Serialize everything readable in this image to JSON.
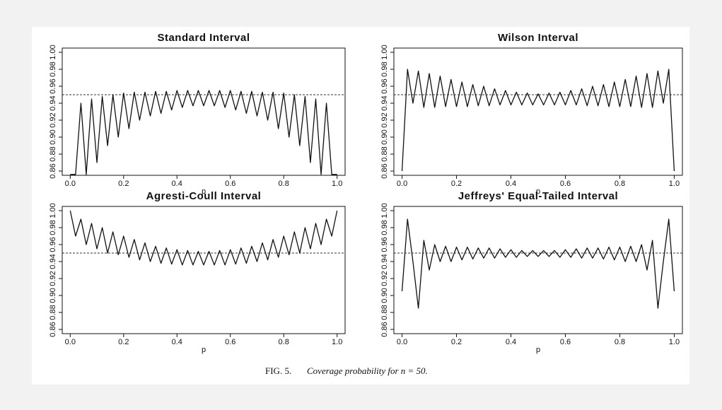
{
  "chart_data": [
    {
      "type": "line",
      "title": "Standard Interval",
      "x_label": "p",
      "x": [
        0,
        0.02,
        0.04,
        0.06,
        0.08,
        0.1,
        0.12,
        0.14,
        0.16,
        0.18,
        0.2,
        0.22,
        0.24,
        0.26,
        0.28,
        0.3,
        0.32,
        0.34,
        0.36,
        0.38,
        0.4,
        0.42,
        0.44,
        0.46,
        0.48,
        0.5,
        0.52,
        0.54,
        0.56,
        0.58,
        0.6,
        0.62,
        0.64,
        0.66,
        0.68,
        0.7,
        0.72,
        0.74,
        0.76,
        0.78,
        0.8,
        0.82,
        0.84,
        0.86,
        0.88,
        0.9,
        0.92,
        0.94,
        0.96,
        0.98,
        1.0
      ],
      "values": [
        0.856,
        0.856,
        0.94,
        0.856,
        0.945,
        0.87,
        0.948,
        0.89,
        0.95,
        0.9,
        0.952,
        0.91,
        0.953,
        0.92,
        0.953,
        0.925,
        0.954,
        0.928,
        0.954,
        0.932,
        0.955,
        0.935,
        0.955,
        0.937,
        0.955,
        0.937,
        0.955,
        0.937,
        0.955,
        0.935,
        0.955,
        0.932,
        0.954,
        0.928,
        0.954,
        0.925,
        0.953,
        0.92,
        0.953,
        0.91,
        0.952,
        0.9,
        0.95,
        0.89,
        0.948,
        0.87,
        0.945,
        0.856,
        0.94,
        0.856,
        0.856
      ],
      "color": "#111111",
      "hline": 0.95,
      "xlim": [
        -0.03,
        1.03
      ],
      "xticks": [
        {
          "value": 0,
          "label": "0.0"
        },
        0.2,
        0.4,
        0.6,
        0.8,
        {
          "value": 1,
          "label": "1.0"
        }
      ],
      "ylim": [
        0.855,
        1.005
      ],
      "yticks": [
        0.86,
        0.88,
        {
          "value": 0.9,
          "label": "0.90"
        },
        0.92,
        0.94,
        0.96,
        0.98,
        {
          "value": 1,
          "label": "1.00"
        }
      ]
    },
    {
      "type": "line",
      "title": "Wilson Interval",
      "x_label": "p",
      "x": [
        0,
        0.02,
        0.04,
        0.06,
        0.08,
        0.1,
        0.12,
        0.14,
        0.16,
        0.18,
        0.2,
        0.22,
        0.24,
        0.26,
        0.28,
        0.3,
        0.32,
        0.34,
        0.36,
        0.38,
        0.4,
        0.42,
        0.44,
        0.46,
        0.48,
        0.5,
        0.52,
        0.54,
        0.56,
        0.58,
        0.6,
        0.62,
        0.64,
        0.66,
        0.68,
        0.7,
        0.72,
        0.74,
        0.76,
        0.78,
        0.8,
        0.82,
        0.84,
        0.86,
        0.88,
        0.9,
        0.92,
        0.94,
        0.96,
        0.98,
        1.0
      ],
      "values": [
        0.86,
        0.98,
        0.94,
        0.978,
        0.935,
        0.975,
        0.935,
        0.972,
        0.936,
        0.968,
        0.936,
        0.965,
        0.936,
        0.962,
        0.937,
        0.96,
        0.937,
        0.957,
        0.938,
        0.955,
        0.938,
        0.953,
        0.938,
        0.952,
        0.938,
        0.951,
        0.938,
        0.952,
        0.938,
        0.953,
        0.938,
        0.955,
        0.938,
        0.957,
        0.937,
        0.96,
        0.937,
        0.962,
        0.936,
        0.965,
        0.936,
        0.968,
        0.936,
        0.972,
        0.935,
        0.975,
        0.935,
        0.978,
        0.94,
        0.98,
        0.86
      ],
      "color": "#111111",
      "hline": 0.95,
      "xlim": [
        -0.03,
        1.03
      ],
      "xticks": [
        {
          "value": 0,
          "label": "0.0"
        },
        0.2,
        0.4,
        0.6,
        0.8,
        {
          "value": 1,
          "label": "1.0"
        }
      ],
      "ylim": [
        0.855,
        1.005
      ],
      "yticks": [
        0.86,
        0.88,
        {
          "value": 0.9,
          "label": "0.90"
        },
        0.92,
        0.94,
        0.96,
        0.98,
        {
          "value": 1,
          "label": "1.00"
        }
      ]
    },
    {
      "type": "line",
      "title": "Agresti-Coull Interval",
      "x_label": "p",
      "x": [
        0,
        0.02,
        0.04,
        0.06,
        0.08,
        0.1,
        0.12,
        0.14,
        0.16,
        0.18,
        0.2,
        0.22,
        0.24,
        0.26,
        0.28,
        0.3,
        0.32,
        0.34,
        0.36,
        0.38,
        0.4,
        0.42,
        0.44,
        0.46,
        0.48,
        0.5,
        0.52,
        0.54,
        0.56,
        0.58,
        0.6,
        0.62,
        0.64,
        0.66,
        0.68,
        0.7,
        0.72,
        0.74,
        0.76,
        0.78,
        0.8,
        0.82,
        0.84,
        0.86,
        0.88,
        0.9,
        0.92,
        0.94,
        0.96,
        0.98,
        1.0
      ],
      "values": [
        1.0,
        0.97,
        0.99,
        0.96,
        0.985,
        0.955,
        0.98,
        0.95,
        0.975,
        0.948,
        0.97,
        0.945,
        0.966,
        0.942,
        0.962,
        0.94,
        0.958,
        0.938,
        0.956,
        0.937,
        0.954,
        0.936,
        0.953,
        0.936,
        0.952,
        0.936,
        0.952,
        0.936,
        0.953,
        0.936,
        0.954,
        0.937,
        0.956,
        0.938,
        0.958,
        0.94,
        0.962,
        0.942,
        0.966,
        0.945,
        0.97,
        0.948,
        0.975,
        0.95,
        0.98,
        0.955,
        0.985,
        0.96,
        0.99,
        0.97,
        1.0
      ],
      "color": "#111111",
      "hline": 0.95,
      "xlim": [
        -0.03,
        1.03
      ],
      "xticks": [
        {
          "value": 0,
          "label": "0.0"
        },
        0.2,
        0.4,
        0.6,
        0.8,
        {
          "value": 1,
          "label": "1.0"
        }
      ],
      "ylim": [
        0.855,
        1.005
      ],
      "yticks": [
        0.86,
        0.88,
        {
          "value": 0.9,
          "label": "0.90"
        },
        0.92,
        0.94,
        0.96,
        0.98,
        {
          "value": 1,
          "label": "1.00"
        }
      ]
    },
    {
      "type": "line",
      "title": "Jeffreys' Equal-Tailed Interval",
      "x_label": "p",
      "x": [
        0,
        0.02,
        0.04,
        0.06,
        0.08,
        0.1,
        0.12,
        0.14,
        0.16,
        0.18,
        0.2,
        0.22,
        0.24,
        0.26,
        0.28,
        0.3,
        0.32,
        0.34,
        0.36,
        0.38,
        0.4,
        0.42,
        0.44,
        0.46,
        0.48,
        0.5,
        0.52,
        0.54,
        0.56,
        0.58,
        0.6,
        0.62,
        0.64,
        0.66,
        0.68,
        0.7,
        0.72,
        0.74,
        0.76,
        0.78,
        0.8,
        0.82,
        0.84,
        0.86,
        0.88,
        0.9,
        0.92,
        0.94,
        0.96,
        0.98,
        1.0
      ],
      "values": [
        0.905,
        0.99,
        0.94,
        0.885,
        0.965,
        0.93,
        0.96,
        0.94,
        0.958,
        0.94,
        0.957,
        0.942,
        0.957,
        0.943,
        0.956,
        0.944,
        0.956,
        0.944,
        0.955,
        0.945,
        0.954,
        0.945,
        0.953,
        0.946,
        0.953,
        0.946,
        0.953,
        0.946,
        0.953,
        0.945,
        0.954,
        0.945,
        0.955,
        0.944,
        0.956,
        0.944,
        0.956,
        0.943,
        0.957,
        0.942,
        0.957,
        0.94,
        0.958,
        0.94,
        0.96,
        0.93,
        0.965,
        0.885,
        0.94,
        0.99,
        0.905
      ],
      "color": "#111111",
      "hline": 0.95,
      "xlim": [
        -0.03,
        1.03
      ],
      "xticks": [
        {
          "value": 0,
          "label": "0.0"
        },
        0.2,
        0.4,
        0.6,
        0.8,
        {
          "value": 1,
          "label": "1.0"
        }
      ],
      "ylim": [
        0.855,
        1.005
      ],
      "yticks": [
        0.86,
        0.88,
        {
          "value": 0.9,
          "label": "0.90"
        },
        0.92,
        0.94,
        0.96,
        0.98,
        {
          "value": 1,
          "label": "1.00"
        }
      ]
    }
  ],
  "caption": {
    "label": "FIG. 5.",
    "text": "Coverage probability for n = 50."
  }
}
